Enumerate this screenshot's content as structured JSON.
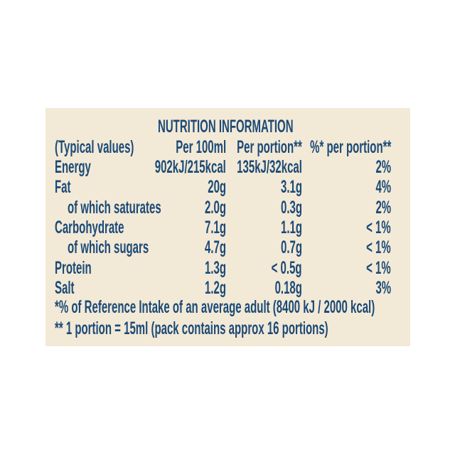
{
  "title": "NUTRITION INFORMATION",
  "colors": {
    "background": "#f3e9d7",
    "text": "#1b4a76"
  },
  "header": [
    "(Typical values)",
    "Per 100ml",
    "Per portion**",
    "%* per portion**"
  ],
  "rows": [
    {
      "label": "Energy",
      "indent": false,
      "per100": "902kJ/215kcal",
      "portion": "135kJ/32kcal",
      "ri": "2%"
    },
    {
      "label": "Fat",
      "indent": false,
      "per100": "20g",
      "portion": "3.1g",
      "ri": "4%"
    },
    {
      "label": "of which saturates",
      "indent": true,
      "per100": "2.0g",
      "portion": "0.3g",
      "ri": "2%"
    },
    {
      "label": "Carbohydrate",
      "indent": false,
      "per100": "7.1g",
      "portion": "1.1g",
      "ri": "< 1%"
    },
    {
      "label": "of which sugars",
      "indent": true,
      "per100": "4.7g",
      "portion": "0.7g",
      "ri": "< 1%"
    },
    {
      "label": "Protein",
      "indent": false,
      "per100": "1.3g",
      "portion": "< 0.5g",
      "ri": "< 1%"
    },
    {
      "label": "Salt",
      "indent": false,
      "per100": "1.2g",
      "portion": "0.18g",
      "ri": "3%"
    }
  ],
  "footnotes": [
    "*% of Reference Intake of an average adult (8400 kJ / 2000 kcal)",
    "** 1 portion = 15ml (pack contains approx 16 portions)"
  ]
}
